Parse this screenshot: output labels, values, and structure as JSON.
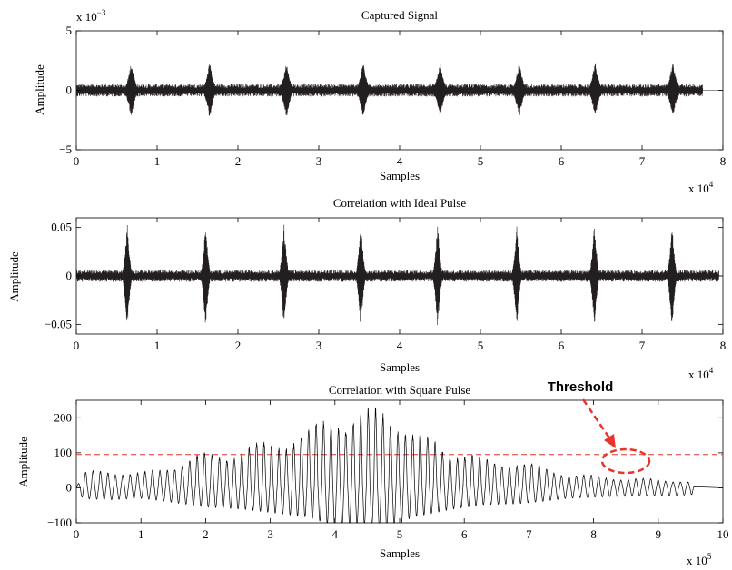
{
  "chart_data": [
    {
      "type": "line",
      "title": "Captured Signal",
      "xlabel": "Samples",
      "ylabel": "Amplitude",
      "x_exponent_label": {
        "base": "x 10",
        "exp": "4"
      },
      "y_exponent_label": {
        "base": "x 10",
        "exp": "−3"
      },
      "xlim": [
        0,
        8
      ],
      "ylim": [
        -5,
        5
      ],
      "x_ticks": [
        "0",
        "1",
        "2",
        "3",
        "4",
        "5",
        "6",
        "7",
        "8"
      ],
      "y_ticks": [
        "−5",
        "0",
        "5"
      ],
      "y_tick_values": [
        -5,
        0,
        5
      ],
      "grid": false,
      "noise_level": 0.35,
      "pulse_centers": [
        0.68,
        1.65,
        2.6,
        3.55,
        4.5,
        5.48,
        6.42,
        7.38
      ],
      "pulse_peak": 2.4,
      "pulse_half_width": 0.1,
      "signal_end": 7.75,
      "line_color": "#231f20"
    },
    {
      "type": "line",
      "title": "Correlation with Ideal Pulse",
      "xlabel": "Samples",
      "ylabel": "Amplitude",
      "x_exponent_label": {
        "base": "x 10",
        "exp": "4"
      },
      "xlim": [
        0,
        8
      ],
      "ylim": [
        -0.06,
        0.06
      ],
      "x_ticks": [
        "0",
        "1",
        "2",
        "3",
        "4",
        "5",
        "6",
        "7",
        "8"
      ],
      "y_ticks": [
        "−0.05",
        "0",
        "0.05"
      ],
      "y_tick_values": [
        -0.05,
        0,
        0.05
      ],
      "grid": false,
      "noise_level": 0.004,
      "pulse_centers": [
        0.63,
        1.6,
        2.57,
        3.52,
        4.47,
        5.45,
        6.41,
        7.37
      ],
      "pulse_peak": 0.055,
      "pulse_half_width": 0.07,
      "signal_end": 7.95,
      "line_color": "#231f20"
    },
    {
      "type": "line",
      "title": "Correlation with Square Pulse",
      "xlabel": "Samples",
      "ylabel": "Amplitude",
      "x_exponent_label": {
        "base": "x 10",
        "exp": "5"
      },
      "xlim": [
        0,
        10
      ],
      "ylim": [
        -100,
        250
      ],
      "x_ticks": [
        "0",
        "1",
        "2",
        "3",
        "4",
        "5",
        "6",
        "7",
        "8",
        "9",
        "10"
      ],
      "y_ticks": [
        "−100",
        "0",
        "100",
        "200"
      ],
      "y_tick_values": [
        -100,
        0,
        100,
        200
      ],
      "grid": false,
      "threshold": 95,
      "signal_end": 9.55,
      "oscillation_period": 0.115,
      "envelope": [
        [
          0,
          40
        ],
        [
          0.5,
          50
        ],
        [
          1.0,
          40
        ],
        [
          1.3,
          55
        ],
        [
          2.0,
          95
        ],
        [
          2.6,
          110
        ],
        [
          3.0,
          130
        ],
        [
          3.6,
          160
        ],
        [
          4.0,
          220
        ],
        [
          4.4,
          200
        ],
        [
          4.8,
          235
        ],
        [
          5.2,
          160
        ],
        [
          5.8,
          110
        ],
        [
          6.3,
          80
        ],
        [
          6.8,
          75
        ],
        [
          7.2,
          60
        ],
        [
          7.6,
          40
        ],
        [
          8.2,
          30
        ],
        [
          8.8,
          25
        ],
        [
          9.4,
          20
        ],
        [
          9.55,
          15
        ]
      ],
      "line_color": "#000000",
      "threshold_color": "#e8342a",
      "annotation": {
        "text": "Threshold",
        "arrow_color": "#e8342a"
      }
    }
  ]
}
